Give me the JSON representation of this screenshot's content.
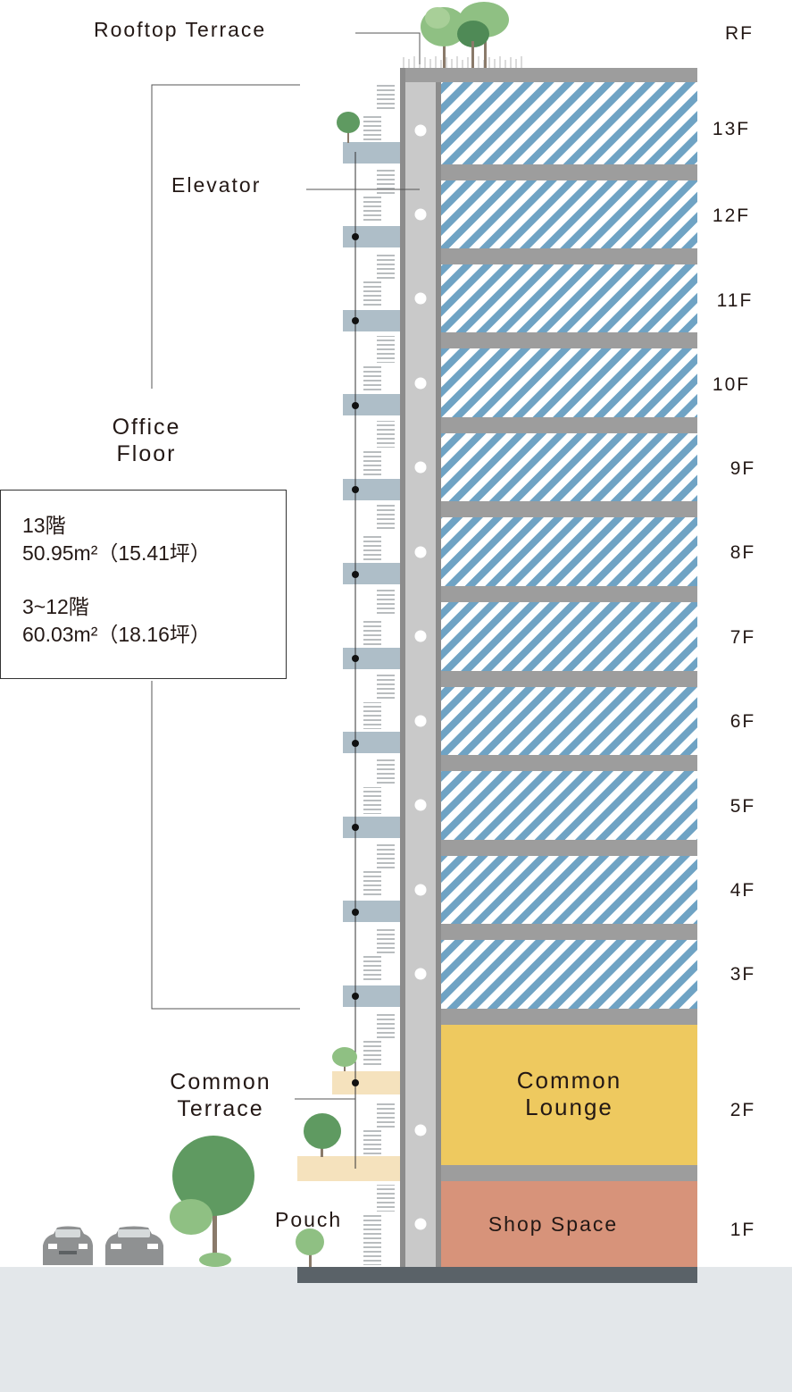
{
  "labels": {
    "rooftop_terrace": "Rooftop Terrace",
    "elevator": "Elevator",
    "office_floor_line1": "Office",
    "office_floor_line2": "Floor",
    "common_terrace_line1": "Common",
    "common_terrace_line2": "Terrace",
    "pouch": "Pouch",
    "common_lounge_line1": "Common",
    "common_lounge_line2": "Lounge",
    "shop_space": "Shop Space"
  },
  "info_box": {
    "floor13_title": "13階",
    "floor13_area": "50.95m²（15.41坪）",
    "floors3to12_title": "3~12階",
    "floors3to12_area": "60.03m²（18.16坪）"
  },
  "floors": [
    "RF",
    "13F",
    "12F",
    "11F",
    "10F",
    "9F",
    "8F",
    "7F",
    "6F",
    "5F",
    "4F",
    "3F",
    "2F",
    "1F"
  ],
  "colors": {
    "office_stripe_blue": "#6fa3c4",
    "slab_gray": "#9d9d9d",
    "common_lounge": "#eec95f",
    "shop_space": "#d7937a",
    "terrace_beige": "#f5e2bd",
    "balcony_gray": "#aebec8",
    "ground": "#e3e7ea",
    "foundation": "#5a6268",
    "tree_green": "#5f9a61"
  }
}
